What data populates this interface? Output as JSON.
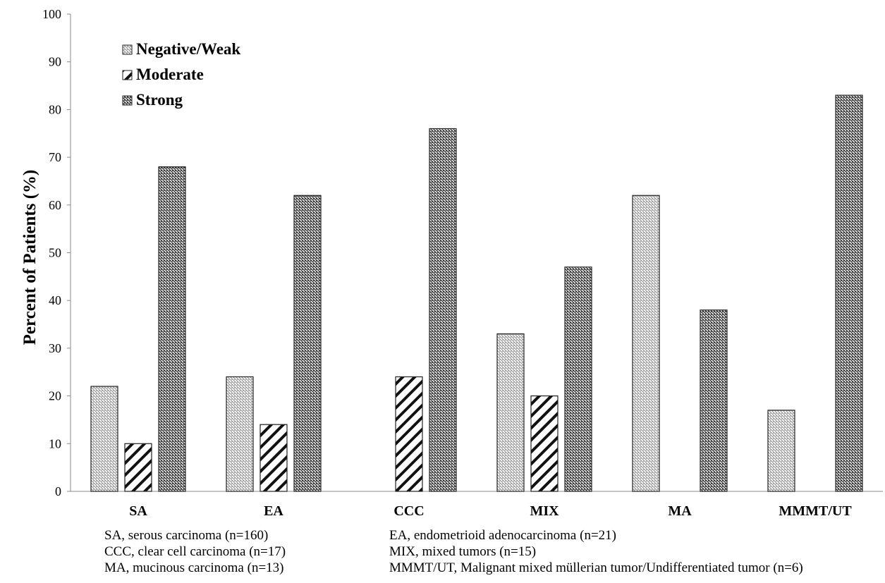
{
  "chart_data": {
    "type": "bar",
    "ylabel": "Percent of Patients (%)",
    "xlabel": "",
    "ylim": [
      0,
      100
    ],
    "yticks": [
      "0",
      "10",
      "20",
      "30",
      "40",
      "50",
      "60",
      "70",
      "80",
      "90",
      "100"
    ],
    "categories": [
      "SA",
      "EA",
      "CCC",
      "MIX",
      "MA",
      "MMMT/UT"
    ],
    "series": [
      {
        "name": "Negative/Weak",
        "values": [
          22,
          24,
          0,
          33,
          62,
          17
        ],
        "pattern": "fine-diagonal-light"
      },
      {
        "name": "Moderate",
        "values": [
          10,
          14,
          24,
          20,
          0,
          0
        ],
        "pattern": "wide-diagonal-bold"
      },
      {
        "name": "Strong",
        "values": [
          68,
          62,
          76,
          47,
          38,
          83
        ],
        "pattern": "fine-diagonal-dark"
      }
    ],
    "legend_position": "top-left",
    "grid": false,
    "colors": {
      "light": "#8a8a8a",
      "bold": "#111111",
      "dark": "#333333"
    }
  },
  "footnotes": [
    "SA, serous carcinoma (n=160)",
    "EA, endometrioid adenocarcinoma (n=21)",
    "CCC, clear cell carcinoma (n=17)",
    "MIX, mixed tumors (n=15)",
    "MA, mucinous carcinoma (n=13)",
    "MMMT/UT, Malignant mixed müllerian tumor/Undifferentiated tumor (n=6)"
  ]
}
